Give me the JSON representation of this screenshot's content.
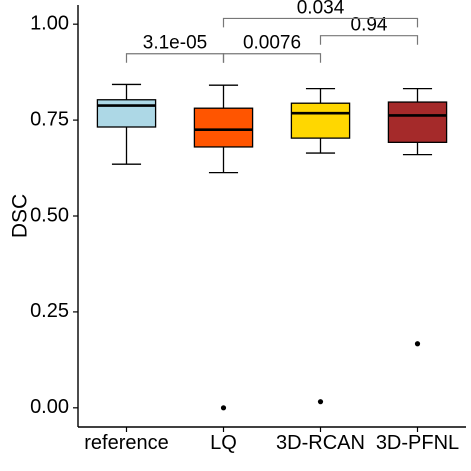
{
  "chart_data": {
    "type": "box",
    "title": "",
    "xlabel": "",
    "ylabel": "DSC",
    "ylim": [
      -0.05,
      1.05
    ],
    "yticks": [
      0.0,
      0.25,
      0.5,
      0.75,
      1.0
    ],
    "ytick_labels": [
      "0.00",
      "0.25",
      "0.50",
      "0.75",
      "1.00"
    ],
    "grid": false,
    "categories": [
      "reference",
      "LQ",
      "3D-RCAN",
      "3D-PFNL"
    ],
    "boxes": [
      {
        "name": "reference",
        "color": "#add8e6",
        "min": 0.635,
        "q1": 0.732,
        "median": 0.788,
        "q3": 0.803,
        "max": 0.843,
        "outliers": []
      },
      {
        "name": "LQ",
        "color": "#ff5500",
        "min": 0.613,
        "q1": 0.68,
        "median": 0.725,
        "q3": 0.781,
        "max": 0.841,
        "outliers": [
          0.0
        ]
      },
      {
        "name": "3D-RCAN",
        "color": "#ffd700",
        "min": 0.664,
        "q1": 0.703,
        "median": 0.768,
        "q3": 0.794,
        "max": 0.832,
        "outliers": [
          0.016
        ]
      },
      {
        "name": "3D-PFNL",
        "color": "#a52a2a",
        "min": 0.66,
        "q1": 0.692,
        "median": 0.762,
        "q3": 0.797,
        "max": 0.832,
        "outliers": [
          0.167
        ]
      }
    ],
    "comparisons": [
      {
        "from": "reference",
        "to": "LQ",
        "label": "3.1e-05",
        "level": 0.923
      },
      {
        "from": "LQ",
        "to": "3D-RCAN",
        "label": "0.0076",
        "level": 0.923
      },
      {
        "from": "3D-RCAN",
        "to": "3D-PFNL",
        "label": "0.94",
        "level": 0.97
      },
      {
        "from": "LQ",
        "to": "3D-PFNL",
        "label": "0.034",
        "level": 1.015
      }
    ]
  }
}
